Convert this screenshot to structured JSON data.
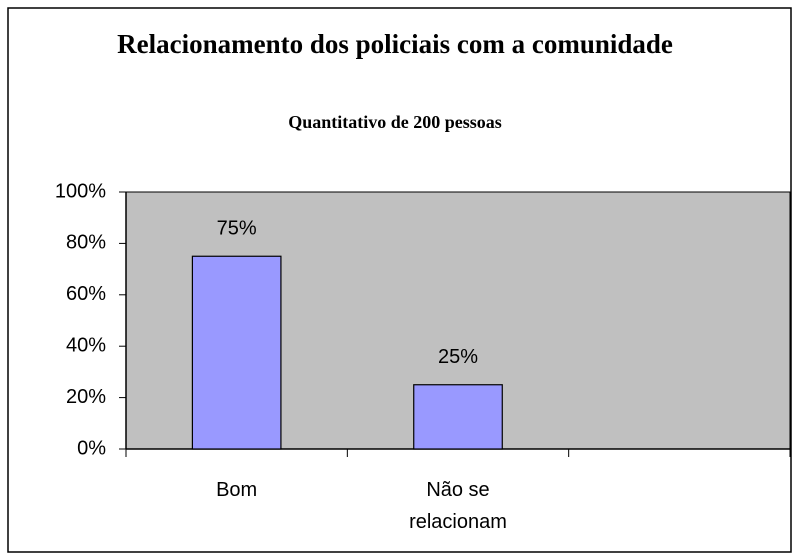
{
  "chart_data": {
    "type": "bar",
    "title": "Relacionamento dos policiais com a comunidade",
    "subtitle": "Quantitativo de 200 pessoas",
    "categories": [
      "Bom",
      "Não se relacionam",
      null
    ],
    "values": [
      75,
      25,
      null
    ],
    "value_labels": [
      "75%",
      "25%",
      null
    ],
    "color": "#9999ff",
    "plot_background": "#c0c0c0",
    "ylim": [
      0,
      100
    ],
    "yticks": [
      {
        "value": 0,
        "label": "0%"
      },
      {
        "value": 20,
        "label": "20%"
      },
      {
        "value": 40,
        "label": "40%"
      },
      {
        "value": 60,
        "label": "60%"
      },
      {
        "value": 80,
        "label": "80%"
      },
      {
        "value": 100,
        "label": "100%"
      }
    ],
    "grid": false
  }
}
